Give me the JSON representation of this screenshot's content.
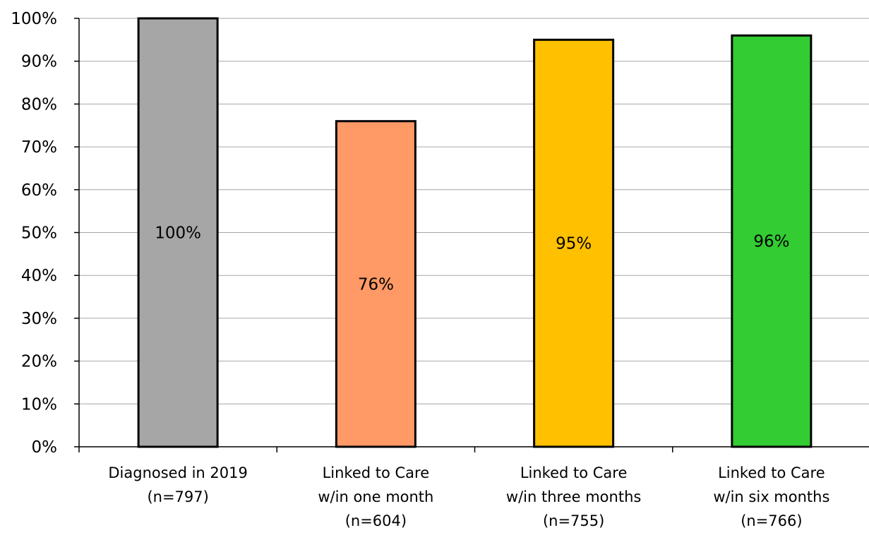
{
  "chart_data": {
    "type": "bar",
    "title": "",
    "xlabel": "",
    "ylabel": "",
    "ylim": [
      0,
      100
    ],
    "y_ticks": [
      "0%",
      "10%",
      "20%",
      "30%",
      "40%",
      "50%",
      "60%",
      "70%",
      "80%",
      "90%",
      "100%"
    ],
    "y_tick_values": [
      0,
      10,
      20,
      30,
      40,
      50,
      60,
      70,
      80,
      90,
      100
    ],
    "grid": true,
    "categories": [
      [
        "Diagnosed in 2019",
        "(n=797)"
      ],
      [
        "Linked to Care",
        "w/in one month",
        "(n=604)"
      ],
      [
        "Linked to Care",
        "w/in three months",
        "(n=755)"
      ],
      [
        "Linked to Care",
        "w/in six months",
        "(n=766)"
      ]
    ],
    "values": [
      100,
      76,
      95,
      96
    ],
    "data_labels": [
      "100%",
      "76%",
      "95%",
      "96%"
    ],
    "colors": [
      "#a6a6a6",
      "#ff9966",
      "#ffc000",
      "#33cc33"
    ]
  }
}
